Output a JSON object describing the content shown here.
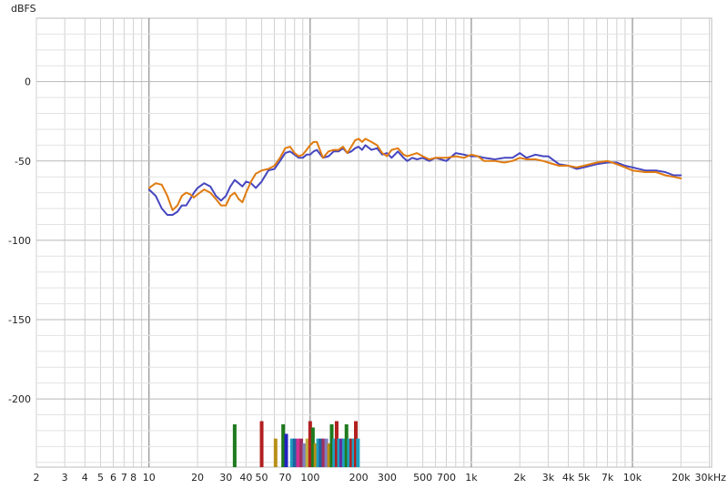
{
  "chart_data": {
    "type": "line",
    "ylabel": "dBFS",
    "xscale": "log",
    "xlim": [
      2,
      31000
    ],
    "ylim": [
      -243,
      40
    ],
    "grid": true,
    "y_ticks": [
      0,
      -50,
      -100,
      -150,
      -200
    ],
    "y_tick_labels": [
      "0",
      "-50",
      "-100",
      "-150",
      "-200"
    ],
    "x_ticks": [
      2,
      3,
      4,
      5,
      6,
      7,
      8,
      10,
      20,
      30,
      40,
      50,
      70,
      100,
      200,
      300,
      500,
      700,
      1000,
      2000,
      3000,
      4000,
      5000,
      7000,
      10000,
      20000,
      30000
    ],
    "x_tick_labels": [
      "2",
      "3",
      "4",
      "5",
      "6",
      "7",
      "8",
      "10",
      "20",
      "30",
      "40",
      "50",
      "70",
      "100",
      "200",
      "300",
      "500",
      "700",
      "1k",
      "2k",
      "3k",
      "4k",
      "5k",
      "7k",
      "10k",
      "20k",
      "30kHz"
    ],
    "series": [
      {
        "color": "#4646c0",
        "x": [
          10,
          11,
          12,
          13,
          14,
          15,
          16,
          17,
          18,
          19,
          20,
          22,
          24,
          26,
          28,
          30,
          32,
          34,
          36,
          38,
          40,
          43,
          46,
          50,
          55,
          60,
          65,
          70,
          75,
          80,
          85,
          90,
          95,
          100,
          105,
          110,
          120,
          130,
          140,
          150,
          160,
          170,
          180,
          190,
          200,
          210,
          220,
          240,
          260,
          280,
          300,
          320,
          350,
          380,
          400,
          430,
          460,
          500,
          550,
          600,
          700,
          800,
          900,
          1000,
          1100,
          1200,
          1400,
          1600,
          1800,
          2000,
          2200,
          2500,
          2800,
          3000,
          3500,
          4000,
          4500,
          5000,
          6000,
          7000,
          8000,
          9000,
          10000,
          12000,
          14000,
          16000,
          18000,
          20000
        ],
        "y": [
          -68,
          -72,
          -80,
          -84,
          -84,
          -82,
          -78,
          -78,
          -74,
          -70,
          -67,
          -64,
          -66,
          -72,
          -75,
          -72,
          -66,
          -62,
          -64,
          -66,
          -63,
          -64,
          -67,
          -63,
          -56,
          -55,
          -50,
          -45,
          -44,
          -46,
          -48,
          -48,
          -46,
          -46,
          -44,
          -43,
          -48,
          -47,
          -44,
          -44,
          -42,
          -45,
          -44,
          -42,
          -41,
          -43,
          -40,
          -43,
          -42,
          -46,
          -45,
          -48,
          -44,
          -48,
          -50,
          -48,
          -49,
          -48,
          -50,
          -48,
          -50,
          -45,
          -46,
          -47,
          -47,
          -48,
          -49,
          -48,
          -48,
          -45,
          -48,
          -46,
          -47,
          -47,
          -52,
          -53,
          -55,
          -54,
          -52,
          -51,
          -51,
          -53,
          -54,
          -56,
          -56,
          -57,
          -59,
          -59
        ]
      },
      {
        "color": "#e07b10",
        "x": [
          10,
          11,
          12,
          13,
          14,
          15,
          16,
          17,
          18,
          19,
          20,
          22,
          24,
          26,
          28,
          30,
          32,
          34,
          36,
          38,
          40,
          43,
          46,
          50,
          55,
          60,
          65,
          70,
          75,
          80,
          85,
          90,
          95,
          100,
          105,
          110,
          120,
          130,
          140,
          150,
          160,
          170,
          180,
          190,
          200,
          210,
          220,
          240,
          260,
          280,
          300,
          320,
          350,
          380,
          400,
          430,
          460,
          500,
          550,
          600,
          700,
          800,
          900,
          1000,
          1100,
          1200,
          1400,
          1600,
          1800,
          2000,
          2200,
          2500,
          2800,
          3000,
          3500,
          4000,
          4500,
          5000,
          6000,
          7000,
          8000,
          9000,
          10000,
          12000,
          14000,
          16000,
          18000,
          20000
        ],
        "y": [
          -67,
          -64,
          -65,
          -72,
          -81,
          -78,
          -72,
          -70,
          -71,
          -73,
          -71,
          -68,
          -70,
          -74,
          -78,
          -78,
          -72,
          -70,
          -74,
          -76,
          -70,
          -63,
          -58,
          -56,
          -55,
          -53,
          -48,
          -42,
          -41,
          -45,
          -47,
          -46,
          -43,
          -40,
          -38,
          -38,
          -48,
          -44,
          -43,
          -43,
          -41,
          -45,
          -41,
          -37,
          -36,
          -38,
          -36,
          -38,
          -40,
          -45,
          -47,
          -43,
          -42,
          -46,
          -47,
          -46,
          -45,
          -47,
          -49,
          -48,
          -48,
          -47,
          -48,
          -46,
          -47,
          -50,
          -50,
          -51,
          -50,
          -48,
          -49,
          -49,
          -50,
          -51,
          -53,
          -53,
          -54,
          -53,
          -51,
          -50,
          -52,
          -54,
          -56,
          -57,
          -57,
          -59,
          -60,
          -61
        ]
      }
    ],
    "bars": {
      "baseline": -243,
      "items": [
        {
          "x": 34,
          "y": -216,
          "color": "#1e7a1e"
        },
        {
          "x": 50,
          "y": -214,
          "color": "#b22020"
        },
        {
          "x": 61,
          "y": -225,
          "color": "#b89018"
        },
        {
          "x": 68,
          "y": -216,
          "color": "#1e7a1e"
        },
        {
          "x": 71,
          "y": -222,
          "color": "#2222c0"
        },
        {
          "x": 77,
          "y": -225,
          "color": "#20a0c0"
        },
        {
          "x": 80,
          "y": -225,
          "color": "#2060a0"
        },
        {
          "x": 84,
          "y": -225,
          "color": "#d03090"
        },
        {
          "x": 88,
          "y": -225,
          "color": "#a03060"
        },
        {
          "x": 92,
          "y": -228,
          "color": "#8080c0"
        },
        {
          "x": 96,
          "y": -225,
          "color": "#c0b040"
        },
        {
          "x": 100,
          "y": -214,
          "color": "#b22020"
        },
        {
          "x": 104,
          "y": -218,
          "color": "#1e7a1e"
        },
        {
          "x": 108,
          "y": -228,
          "color": "#b89018"
        },
        {
          "x": 112,
          "y": -225,
          "color": "#20a0c0"
        },
        {
          "x": 116,
          "y": -225,
          "color": "#2060a0"
        },
        {
          "x": 121,
          "y": -225,
          "color": "#a03060"
        },
        {
          "x": 126,
          "y": -225,
          "color": "#8080c0"
        },
        {
          "x": 131,
          "y": -228,
          "color": "#b89018"
        },
        {
          "x": 136,
          "y": -216,
          "color": "#1e7a1e"
        },
        {
          "x": 141,
          "y": -225,
          "color": "#20a0c0"
        },
        {
          "x": 146,
          "y": -214,
          "color": "#b22020"
        },
        {
          "x": 151,
          "y": -225,
          "color": "#20a0c0"
        },
        {
          "x": 156,
          "y": -225,
          "color": "#6030a0"
        },
        {
          "x": 162,
          "y": -225,
          "color": "#20a0c0"
        },
        {
          "x": 168,
          "y": -216,
          "color": "#1e7a1e"
        },
        {
          "x": 174,
          "y": -225,
          "color": "#20a0c0"
        },
        {
          "x": 180,
          "y": -225,
          "color": "#b22020"
        },
        {
          "x": 186,
          "y": -225,
          "color": "#20a0c0"
        },
        {
          "x": 192,
          "y": -214,
          "color": "#b22020"
        },
        {
          "x": 198,
          "y": -225,
          "color": "#20a0c0"
        }
      ]
    }
  }
}
